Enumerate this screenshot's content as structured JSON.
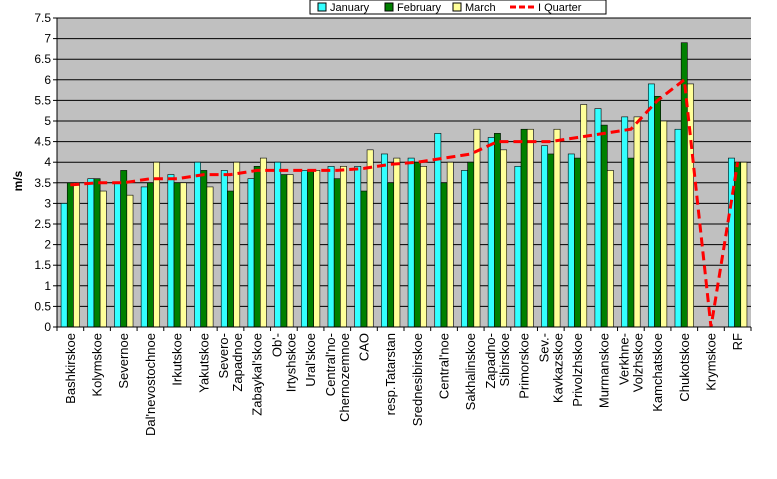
{
  "chart_data": {
    "type": "bar",
    "title": "",
    "xlabel": "",
    "ylabel": "m/s",
    "ylim": [
      0,
      7.5
    ],
    "ytick_step": 0.5,
    "yticks": [
      "0",
      "0.5",
      "1",
      "1.5",
      "2",
      "2.5",
      "3",
      "3.5",
      "4",
      "4.5",
      "5",
      "5.5",
      "6",
      "6.5",
      "7",
      "7.5"
    ],
    "grid": true,
    "legend_position": "top",
    "categories": [
      [
        "Bashkirskoe"
      ],
      [
        "Kolymskoe"
      ],
      [
        "Severnoe"
      ],
      [
        "Dal'nevostochnoe"
      ],
      [
        "Irkutskoe"
      ],
      [
        "Yakutskoe"
      ],
      [
        "Severo-",
        "Zapadnoe"
      ],
      [
        "Zabaykal'skoe"
      ],
      [
        "Ob'-",
        "Irtyshskoe"
      ],
      [
        "Ural'skoe"
      ],
      [
        "Central'no-",
        "Chernozemnoe"
      ],
      [
        "CAO"
      ],
      [
        "resp.Tatarstan"
      ],
      [
        "Srednesibirskoe"
      ],
      [
        "Central'noe"
      ],
      [
        "Sakhalinskoe"
      ],
      [
        "Zapadno-",
        "Sibirskoe"
      ],
      [
        "Primorskoe"
      ],
      [
        "Sev.-",
        "Kavkazskoe"
      ],
      [
        "Privolzhskoe"
      ],
      [
        "Murmanskoe"
      ],
      [
        "Verkhne-",
        "Volzhskoe"
      ],
      [
        "Kamchatskoe"
      ],
      [
        "Chukotskoe"
      ],
      [
        "Krymskoe"
      ],
      [
        "RF"
      ]
    ],
    "series": [
      {
        "name": "January",
        "type": "bar",
        "color": "#33ffff",
        "values": [
          3.0,
          3.6,
          3.5,
          3.4,
          3.7,
          4.0,
          3.8,
          3.6,
          4.0,
          3.8,
          3.9,
          3.9,
          4.2,
          4.1,
          4.7,
          3.8,
          4.6,
          3.9,
          4.4,
          4.2,
          5.3,
          5.1,
          5.9,
          4.8,
          null,
          4.1
        ]
      },
      {
        "name": "February",
        "type": "bar",
        "color": "#008000",
        "values": [
          3.5,
          3.6,
          3.8,
          3.5,
          3.5,
          3.8,
          3.3,
          3.9,
          3.7,
          3.8,
          3.6,
          3.3,
          3.5,
          4.0,
          3.5,
          4.0,
          4.7,
          4.8,
          4.2,
          4.1,
          4.9,
          4.1,
          5.6,
          6.9,
          null,
          4.0
        ]
      },
      {
        "name": "March",
        "type": "bar",
        "color": "#ffff99",
        "values": [
          3.5,
          3.3,
          3.2,
          4.0,
          3.5,
          3.4,
          4.0,
          4.1,
          3.7,
          3.8,
          3.9,
          4.3,
          4.1,
          3.9,
          4.0,
          4.8,
          4.3,
          4.8,
          4.8,
          5.4,
          3.8,
          5.1,
          5.0,
          5.9,
          null,
          4.0
        ]
      },
      {
        "name": "I Quarter",
        "type": "line",
        "color": "#ff0000",
        "values": [
          3.45,
          3.5,
          3.5,
          3.6,
          3.6,
          3.7,
          3.7,
          3.8,
          3.8,
          3.8,
          3.8,
          3.85,
          3.95,
          4.0,
          4.1,
          4.2,
          4.5,
          4.5,
          4.5,
          4.6,
          4.7,
          4.8,
          5.5,
          6.0,
          0.0,
          4.0
        ]
      }
    ]
  }
}
